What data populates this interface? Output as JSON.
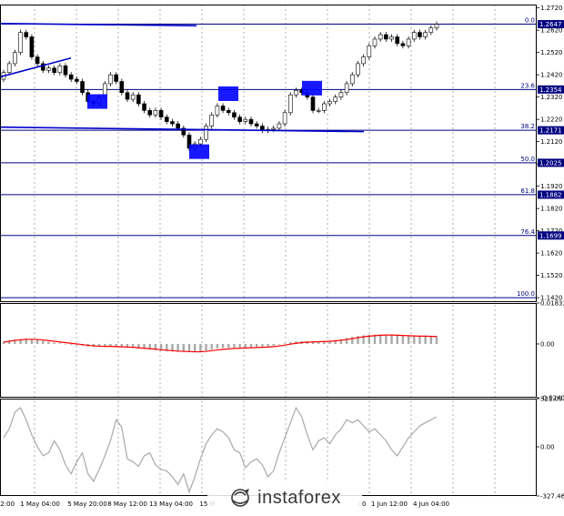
{
  "chart_data": [
    {
      "type": "candlestick",
      "symbol": "GBP/USD",
      "timeframe": "H4",
      "price_axis_ticks": [
        "1.2720",
        "1.2620",
        "1.2520",
        "1.2420",
        "1.2320",
        "1.2220",
        "1.2120",
        "1.2020",
        "1.1920",
        "1.1820",
        "1.1720",
        "1.1620",
        "1.1520",
        "1.1420"
      ],
      "ylim": [
        1.14,
        1.2735
      ],
      "fibonacci_levels": [
        {
          "label": "0.0",
          "price": 1.2647,
          "price_label": "1.2647"
        },
        {
          "label": "23.6",
          "price": 1.2354,
          "price_label": "1.2354"
        },
        {
          "label": "38.2",
          "price": 1.2171,
          "price_label": "1.2171"
        },
        {
          "label": "50.0",
          "price": 1.2025,
          "price_label": "1.2025"
        },
        {
          "label": "61.8",
          "price": 1.1882,
          "price_label": "1.1882"
        },
        {
          "label": "76.4",
          "price": 1.1699,
          "price_label": "1.1699"
        },
        {
          "label": "100.0",
          "price": 1.142,
          "price_label": ""
        }
      ],
      "closes": [
        1.243,
        1.247,
        1.252,
        1.261,
        1.259,
        1.25,
        1.247,
        1.244,
        1.245,
        1.243,
        1.246,
        1.242,
        1.24,
        1.239,
        1.234,
        1.23,
        1.229,
        1.232,
        1.238,
        1.242,
        1.239,
        1.234,
        1.231,
        1.233,
        1.229,
        1.226,
        1.224,
        1.226,
        1.223,
        1.221,
        1.22,
        1.218,
        1.215,
        1.209,
        1.211,
        1.213,
        1.219,
        1.224,
        1.228,
        1.226,
        1.225,
        1.223,
        1.221,
        1.222,
        1.22,
        1.219,
        1.217,
        1.2175,
        1.218,
        1.22,
        1.225,
        1.233,
        1.235,
        1.234,
        1.232,
        1.226,
        1.226,
        1.229,
        1.23,
        1.232,
        1.234,
        1.238,
        1.242,
        1.247,
        1.25,
        1.255,
        1.258,
        1.26,
        1.258,
        1.259,
        1.256,
        1.255,
        1.258,
        1.261,
        1.259,
        1.261,
        1.263,
        1.2647
      ]
    },
    {
      "type": "bar",
      "name": "MACD",
      "axis_ticks": [
        "0.01833",
        "0.00",
        "-0.02407"
      ],
      "ylim": [
        -0.02407,
        0.01833
      ],
      "histogram": [
        0.001,
        0.0015,
        0.002,
        0.0022,
        0.0024,
        0.0022,
        0.0018,
        0.0014,
        0.001,
        0.0006,
        0.0003,
        0.0,
        -0.0003,
        -0.0006,
        -0.0009,
        -0.0012,
        -0.0014,
        -0.0013,
        -0.0012,
        -0.0011,
        -0.0012,
        -0.0014,
        -0.0016,
        -0.0018,
        -0.002,
        -0.0022,
        -0.0025,
        -0.0028,
        -0.0031,
        -0.0033,
        -0.0034,
        -0.0035,
        -0.0036,
        -0.0037,
        -0.0037,
        -0.0034,
        -0.0029,
        -0.0024,
        -0.002,
        -0.0018,
        -0.0017,
        -0.0016,
        -0.0016,
        -0.0015,
        -0.0014,
        -0.0013,
        -0.0012,
        -0.0011,
        -0.0008,
        -0.0003,
        0.0003,
        0.0008,
        0.0012,
        0.0013,
        0.0012,
        0.0011,
        0.0012,
        0.0013,
        0.0015,
        0.0018,
        0.0022,
        0.0027,
        0.0032,
        0.0036,
        0.0039,
        0.0041,
        0.0042,
        0.0042,
        0.0041,
        0.004,
        0.0038,
        0.0037,
        0.0036,
        0.0036,
        0.0035,
        0.0035,
        0.0035,
        0.0036
      ],
      "signal": [
        0.0008,
        0.0012,
        0.0016,
        0.0019,
        0.0021,
        0.0021,
        0.002,
        0.0018,
        0.0015,
        0.0012,
        0.0009,
        0.0006,
        0.0003,
        0.0,
        -0.0003,
        -0.0006,
        -0.0008,
        -0.001,
        -0.0011,
        -0.0011,
        -0.0012,
        -0.0013,
        -0.0014,
        -0.0015,
        -0.0017,
        -0.0019,
        -0.0021,
        -0.0023,
        -0.0026,
        -0.0028,
        -0.003,
        -0.0032,
        -0.0033,
        -0.0034,
        -0.0035,
        -0.0035,
        -0.0033,
        -0.003,
        -0.0027,
        -0.0024,
        -0.0022,
        -0.002,
        -0.0019,
        -0.0018,
        -0.0017,
        -0.0016,
        -0.0015,
        -0.0014,
        -0.0012,
        -0.0009,
        -0.0005,
        -0.0001,
        0.0003,
        0.0006,
        0.0008,
        0.0009,
        0.001,
        0.0011,
        0.0012,
        0.0014,
        0.0017,
        0.002,
        0.0024,
        0.0028,
        0.0032,
        0.0035,
        0.0037,
        0.0039,
        0.004,
        0.004,
        0.0039,
        0.0038,
        0.0037,
        0.0036,
        0.0035,
        0.0035,
        0.0034,
        0.0034
      ]
    },
    {
      "type": "line",
      "name": "CCI",
      "axis_ticks": [
        "321.0916",
        "0.00",
        "-327.4634"
      ],
      "ylim": [
        -327.4634,
        321.0916
      ],
      "values": [
        60,
        120,
        230,
        260,
        180,
        80,
        0,
        -60,
        -40,
        40,
        -20,
        -120,
        -180,
        -100,
        -40,
        -180,
        -230,
        -150,
        -60,
        40,
        180,
        130,
        -80,
        -100,
        -130,
        -60,
        -40,
        -120,
        -150,
        -160,
        -200,
        -250,
        -180,
        -300,
        -200,
        -80,
        20,
        80,
        120,
        100,
        60,
        -20,
        -40,
        -140,
        -100,
        -80,
        -120,
        -200,
        -160,
        -40,
        60,
        160,
        260,
        200,
        80,
        -20,
        40,
        60,
        20,
        80,
        120,
        180,
        160,
        180,
        140,
        100,
        120,
        80,
        40,
        -20,
        -60,
        0,
        60,
        100,
        140,
        160,
        180,
        200
      ],
      "x_tick_labels": [
        "12:00",
        "1 May 04:00",
        "5 May 20:00",
        "8 May 12:00",
        "13 May 04:00",
        "15 M",
        "00",
        "1 Jun 12:00",
        "4 Jun 04:00"
      ]
    }
  ],
  "watermark": {
    "brand": "instaforex"
  },
  "colors": {
    "bull_candle": "#ffffff",
    "bear_candle": "#000000",
    "fib_line": "#000080",
    "trendline": "#0000cc",
    "marker_box": "#0000ff",
    "macd_hist": "#a9a9a9",
    "macd_signal": "#ff0000",
    "cci_line": "#a9a9a9",
    "grid": "#777777"
  }
}
